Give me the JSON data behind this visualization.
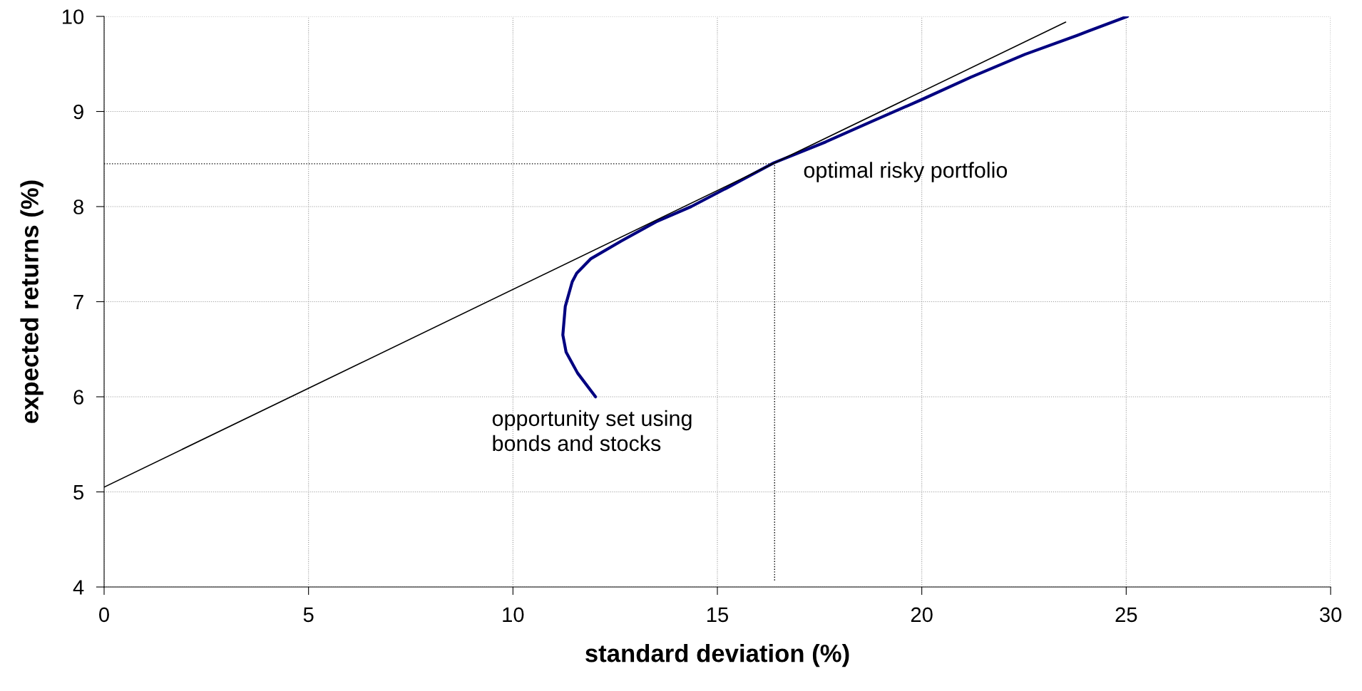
{
  "chart_data": {
    "type": "line",
    "xlabel": "standard deviation (%)",
    "ylabel": "expected returns (%)",
    "xlim": [
      0,
      30
    ],
    "xticks": [
      0,
      5,
      10,
      15,
      20,
      25,
      30
    ],
    "ylim": [
      4,
      10
    ],
    "yticks": [
      4,
      5,
      6,
      7,
      8,
      9,
      10
    ],
    "grid": true,
    "series": [
      {
        "color": "#000080",
        "x": [
          12.02,
          11.58,
          11.3,
          11.22,
          11.28,
          11.45,
          11.56,
          11.9,
          12.66,
          13.5,
          14.36,
          15.25,
          16.38,
          17.65,
          18.8,
          19.97,
          21.2,
          22.52,
          23.8,
          25.03
        ],
        "values": [
          6.0,
          6.25,
          6.47,
          6.65,
          6.95,
          7.21,
          7.3,
          7.45,
          7.64,
          7.84,
          8.0,
          8.2,
          8.46,
          8.68,
          8.9,
          9.12,
          9.36,
          9.6,
          9.8,
          10.0
        ]
      },
      {
        "color": "#000000",
        "x": [
          0,
          23.52
        ],
        "values": [
          5.05,
          9.94
        ]
      },
      {
        "color": "#000000",
        "x": [
          0,
          16.4
        ],
        "values": [
          8.45,
          8.45
        ],
        "line_style": "dotted"
      },
      {
        "color": "#000000",
        "x": [
          16.4,
          16.4
        ],
        "values": [
          4.07,
          8.45
        ],
        "line_style": "dotted"
      }
    ],
    "annotations": [
      "optimal risky portfolio",
      "opportunity set using\nbonds and stocks"
    ]
  }
}
